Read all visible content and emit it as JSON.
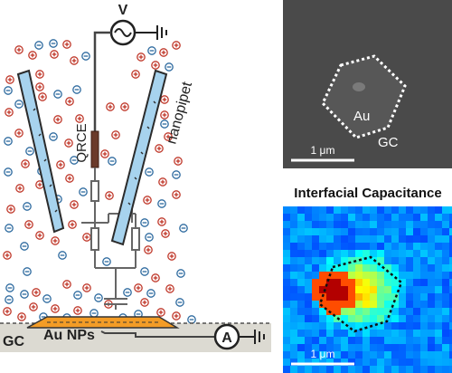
{
  "left_panel": {
    "voltage_source_label": "V",
    "ammeter_label": "A",
    "qrce_label": "QRCE",
    "nanopipet_label": "nanopipet",
    "substrate_label": "GC",
    "nanoparticles_label": "Au NPs",
    "ion_signs": {
      "positive": "+",
      "negative": "−"
    },
    "colors": {
      "pipet_fill": "#a7d3ee",
      "cation": "#c0392b",
      "anion": "#2d6a9f",
      "substrate": "#dcdad2",
      "nanoparticles": "#f39c26",
      "qrce": "#6b3a2a"
    }
  },
  "sem_panel": {
    "au_label": "Au",
    "gc_label": "GC",
    "scale_bar_label": "1 μm"
  },
  "capacitance_panel": {
    "title": "Interfacial Capacitance",
    "scale_bar_label": "1 μm",
    "colormap": "jet"
  }
}
